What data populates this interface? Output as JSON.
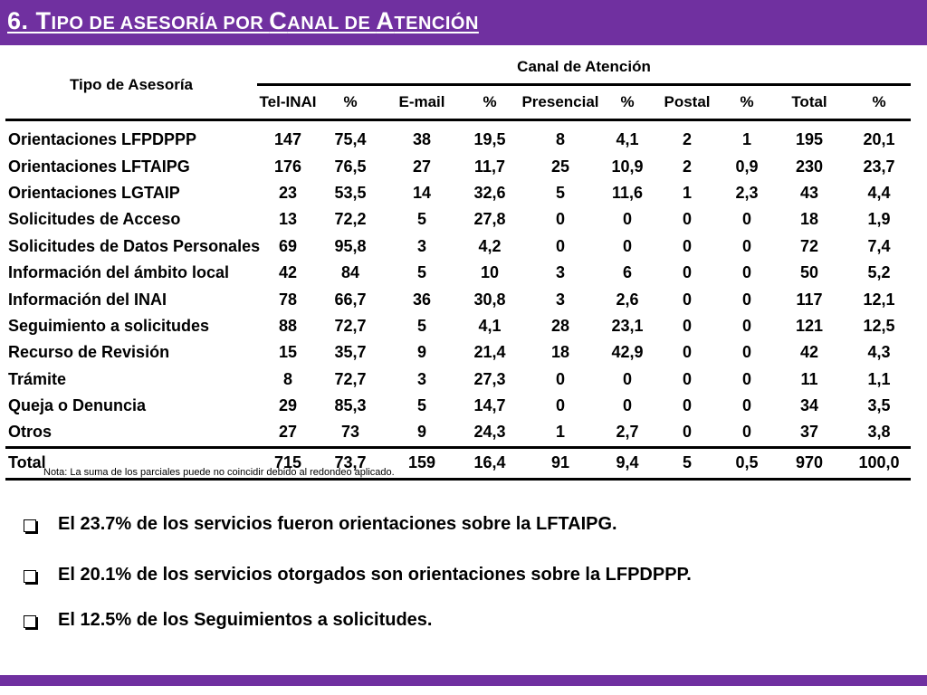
{
  "title": {
    "number": "6. T",
    "w1": "ipo de asesoría por ",
    "c1": "C",
    "w2": "anal de ",
    "c2": "A",
    "w3": "tención"
  },
  "table": {
    "header_tipo": "Tipo de Asesoría",
    "header_canal": "Canal de Atención",
    "columns": [
      "Tel-INAI",
      "%",
      "E-mail",
      "%",
      "Presencial",
      "%",
      "Postal",
      "%",
      "Total",
      "%"
    ],
    "rows": [
      {
        "name": "Orientaciones LFPDPPP",
        "v": [
          "147",
          "75,4",
          "38",
          "19,5",
          "8",
          "4,1",
          "2",
          "1",
          "195",
          "20,1"
        ]
      },
      {
        "name": "Orientaciones LFTAIPG",
        "v": [
          "176",
          "76,5",
          "27",
          "11,7",
          "25",
          "10,9",
          "2",
          "0,9",
          "230",
          "23,7"
        ]
      },
      {
        "name": "Orientaciones LGTAIP",
        "v": [
          "23",
          "53,5",
          "14",
          "32,6",
          "5",
          "11,6",
          "1",
          "2,3",
          "43",
          "4,4"
        ]
      },
      {
        "name": "Solicitudes de Acceso",
        "v": [
          "13",
          "72,2",
          "5",
          "27,8",
          "0",
          "0",
          "0",
          "0",
          "18",
          "1,9"
        ]
      },
      {
        "name": "Solicitudes de Datos Personales",
        "v": [
          "69",
          "95,8",
          "3",
          "4,2",
          "0",
          "0",
          "0",
          "0",
          "72",
          "7,4"
        ]
      },
      {
        "name": "Información del ámbito local",
        "v": [
          "42",
          "84",
          "5",
          "10",
          "3",
          "6",
          "0",
          "0",
          "50",
          "5,2"
        ]
      },
      {
        "name": "Información del INAI",
        "v": [
          "78",
          "66,7",
          "36",
          "30,8",
          "3",
          "2,6",
          "0",
          "0",
          "117",
          "12,1"
        ]
      },
      {
        "name": "Seguimiento a solicitudes",
        "v": [
          "88",
          "72,7",
          "5",
          "4,1",
          "28",
          "23,1",
          "0",
          "0",
          "121",
          "12,5"
        ]
      },
      {
        "name": "Recurso de Revisión",
        "v": [
          "15",
          "35,7",
          "9",
          "21,4",
          "18",
          "42,9",
          "0",
          "0",
          "42",
          "4,3"
        ]
      },
      {
        "name": "Trámite",
        "v": [
          "8",
          "72,7",
          "3",
          "27,3",
          "0",
          "0",
          "0",
          "0",
          "11",
          "1,1"
        ]
      },
      {
        "name": "Queja o Denuncia",
        "v": [
          "29",
          "85,3",
          "5",
          "14,7",
          "0",
          "0",
          "0",
          "0",
          "34",
          "3,5"
        ]
      },
      {
        "name": "Otros",
        "v": [
          "27",
          "73",
          "9",
          "24,3",
          "1",
          "2,7",
          "0",
          "0",
          "37",
          "3,8"
        ]
      }
    ],
    "total": {
      "name": "Total",
      "v": [
        "715",
        "73,7",
        "159",
        "16,4",
        "91",
        "9,4",
        "5",
        "0,5",
        "970",
        "100,0"
      ]
    }
  },
  "nota": "Nota: La suma de los parciales puede no coincidir debido al redondeo aplicado.",
  "bullets": [
    "El 23.7% de los servicios fueron orientaciones sobre la LFTAIPG.",
    "El 20.1% de los servicios otorgados son orientaciones sobre la LFPDPPP.",
    "El 12.5% de los Seguimientos a solicitudes."
  ],
  "colors": {
    "brand": "#7030a0"
  }
}
